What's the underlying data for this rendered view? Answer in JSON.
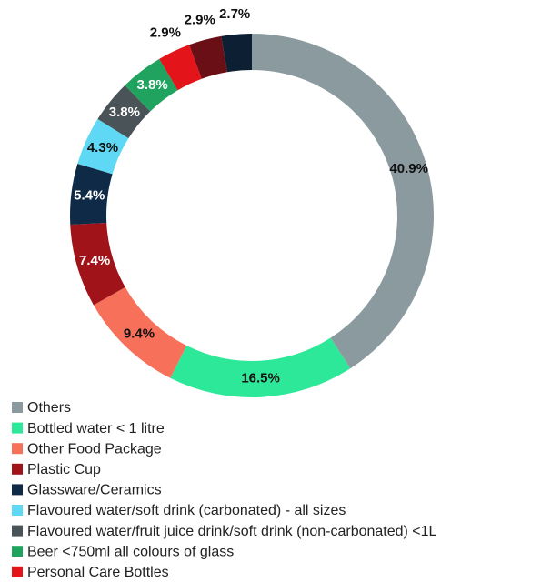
{
  "chart_data": {
    "type": "donut",
    "categories": [
      "Others",
      "Bottled water < 1 litre",
      "Other Food Package",
      "Plastic Cup",
      "Glassware/Ceramics",
      "Flavoured water/soft drink (carbonated) - all sizes",
      "Flavoured water/fruit juice drink/soft drink (non-carbonated) <1L",
      "Beer <750ml all colours of glass",
      "Personal Care Bottles",
      null,
      null
    ],
    "values": [
      40.9,
      16.5,
      9.4,
      7.4,
      5.4,
      4.3,
      3.8,
      3.8,
      2.9,
      2.9,
      2.7
    ],
    "value_labels": [
      "40.9%",
      "16.5%",
      "9.4%",
      "7.4%",
      "5.4%",
      "4.3%",
      "3.8%",
      "3.8%",
      "2.9%",
      "2.9%",
      "2.7%"
    ],
    "colors": [
      "#8a9a9f",
      "#2ee89a",
      "#f7705a",
      "#a01318",
      "#0f2a47",
      "#5fd8f5",
      "#4a5358",
      "#1fa35e",
      "#e3141a",
      "#6b0f17",
      "#0c1f33"
    ],
    "legend": "bottom-left"
  }
}
